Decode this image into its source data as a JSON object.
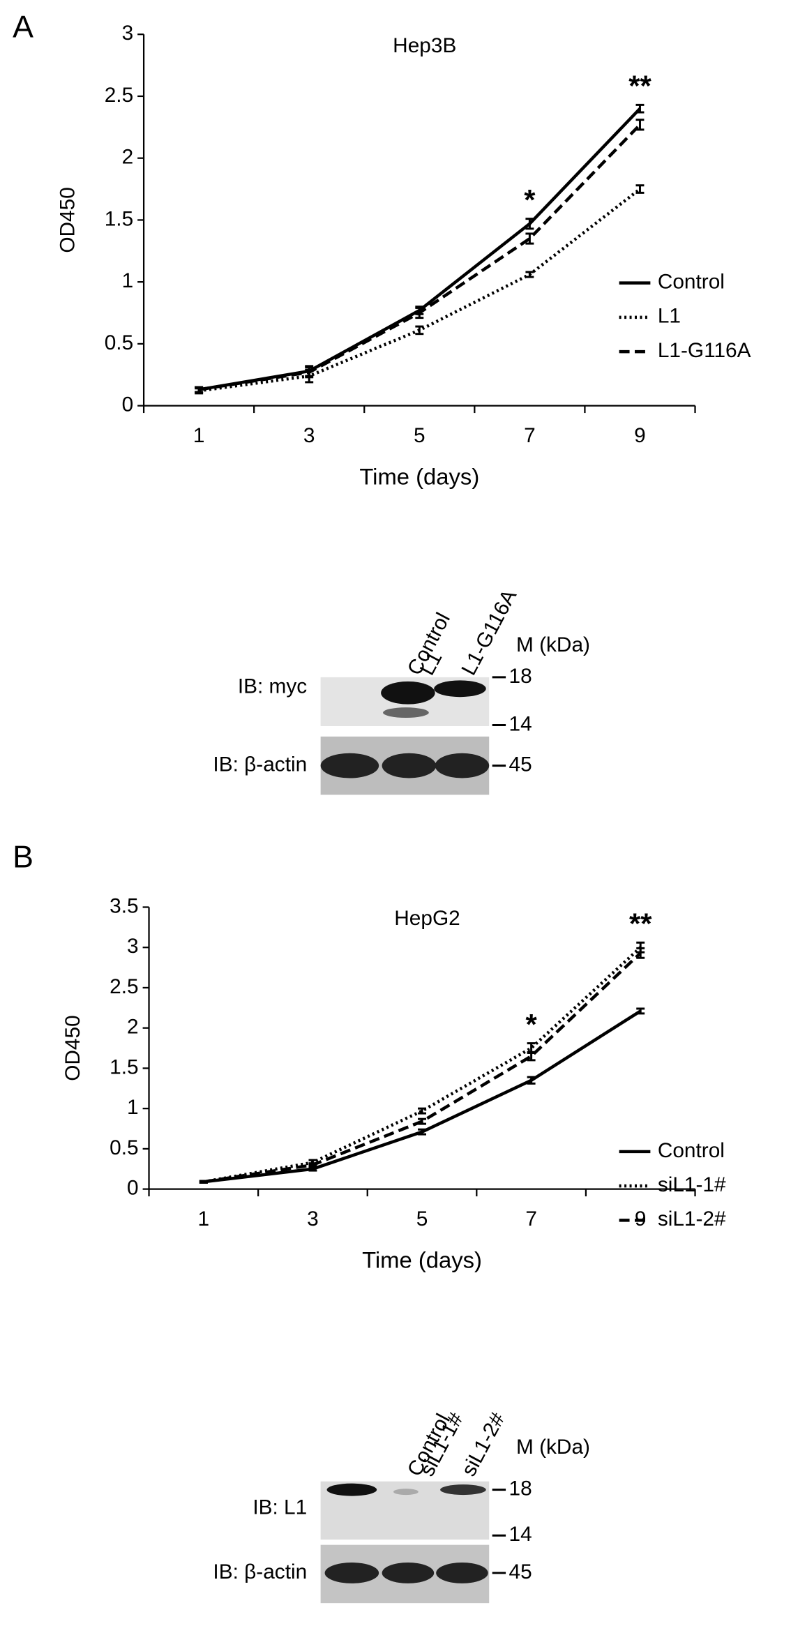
{
  "panel_labels": [
    "A",
    "B"
  ],
  "chart_data": [
    {
      "type": "line",
      "title": "Hep3B",
      "x_label": "Time (days)",
      "y_label": "OD450",
      "categories": [
        "1",
        "3",
        "5",
        "7",
        "9"
      ],
      "ylim": [
        0,
        3
      ],
      "yticks": [
        0,
        0.5,
        1,
        1.5,
        2,
        2.5,
        3
      ],
      "legend": "right",
      "series": [
        {
          "name": "Control",
          "color": "#000000",
          "dash": "solid",
          "values": [
            0.13,
            0.28,
            0.77,
            1.47,
            2.4
          ],
          "errors": [
            0.02,
            0.04,
            0.03,
            0.04,
            0.03
          ]
        },
        {
          "name": "L1",
          "color": "#000000",
          "dash": "dotted",
          "values": [
            0.12,
            0.24,
            0.61,
            1.06,
            1.75
          ],
          "errors": [
            0.02,
            0.05,
            0.03,
            0.02,
            0.03
          ]
        },
        {
          "name": "L1-G116A",
          "color": "#000000",
          "dash": "dashed",
          "values": [
            0.13,
            0.27,
            0.75,
            1.35,
            2.27
          ],
          "errors": [
            0.02,
            0.04,
            0.04,
            0.04,
            0.04
          ]
        }
      ],
      "annotations": [
        {
          "text": "*",
          "x": "7"
        },
        {
          "text": "**",
          "x": "9"
        }
      ]
    },
    {
      "type": "line",
      "title": "HepG2",
      "x_label": "Time (days)",
      "y_label": "OD450",
      "categories": [
        "1",
        "3",
        "5",
        "7",
        "9"
      ],
      "ylim": [
        0,
        3.5
      ],
      "yticks": [
        0,
        0.5,
        1,
        1.5,
        2,
        2.5,
        3,
        3.5
      ],
      "legend": "right",
      "series": [
        {
          "name": "Control",
          "color": "#000000",
          "dash": "solid",
          "values": [
            0.09,
            0.25,
            0.71,
            1.35,
            2.21
          ],
          "errors": [
            0.01,
            0.02,
            0.03,
            0.04,
            0.03
          ]
        },
        {
          "name": "siL1-1#",
          "color": "#000000",
          "dash": "dotted",
          "values": [
            0.09,
            0.33,
            0.97,
            1.75,
            3.0
          ],
          "errors": [
            0.01,
            0.03,
            0.03,
            0.06,
            0.06
          ]
        },
        {
          "name": "siL1-2#",
          "color": "#000000",
          "dash": "dashed",
          "values": [
            0.09,
            0.3,
            0.84,
            1.65,
            2.93
          ],
          "errors": [
            0.01,
            0.02,
            0.03,
            0.05,
            0.06
          ]
        }
      ],
      "annotations": [
        {
          "text": "*",
          "x": "7"
        },
        {
          "text": "**",
          "x": "9"
        }
      ]
    }
  ],
  "blots": [
    {
      "lanes": [
        "Control",
        "L1",
        "L1-G116A"
      ],
      "marker_header": "M (kDa)",
      "rows": [
        {
          "label": "IB: myc",
          "markers": [
            "18",
            "14"
          ]
        },
        {
          "label": "IB: β-actin",
          "markers": [
            "45"
          ]
        }
      ]
    },
    {
      "lanes": [
        "Control",
        "siL1-1#",
        "siL1-2#"
      ],
      "marker_header": "M (kDa)",
      "rows": [
        {
          "label": "IB: L1",
          "markers": [
            "18",
            "14"
          ]
        },
        {
          "label": "IB: β-actin",
          "markers": [
            "45"
          ]
        }
      ]
    }
  ]
}
